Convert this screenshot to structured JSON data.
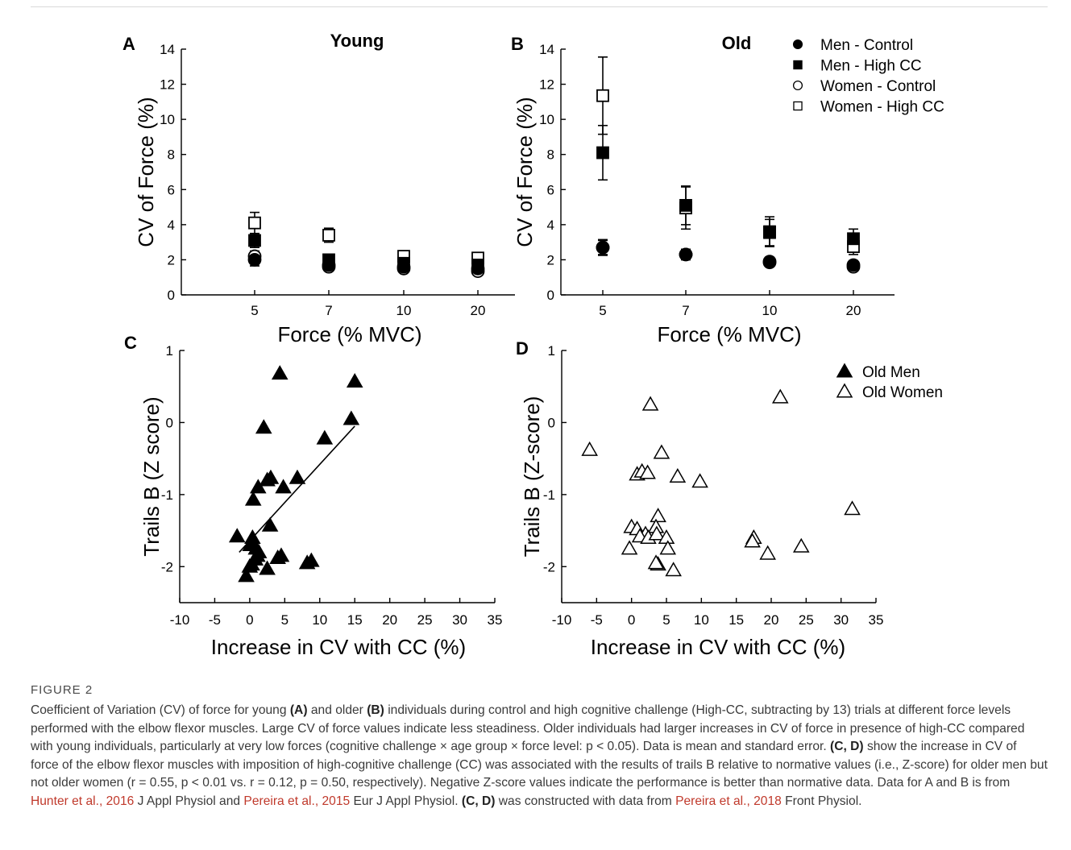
{
  "figure_label": "FIGURE 2",
  "caption": {
    "t1": "Coefficient of Variation (CV) of force for young ",
    "b1": "(A)",
    "t2": " and older ",
    "b2": "(B)",
    "t3": " individuals during control and high cognitive challenge (High-CC, subtracting by 13) trials at different force levels performed with the elbow flexor muscles. Large CV of force values indicate less steadiness. Older individuals had larger increases in CV of force in presence of high-CC compared with young individuals, particularly at very low forces (cognitive challenge × age group × force level: p < 0.05). Data is mean and standard error. ",
    "b3": "(C, D)",
    "t4": " show the increase in CV of force of the elbow flexor muscles with imposition of high-cognitive challenge (CC) was associated with the results of trails B relative to normative values (i.e., Z-score) for older men but not older women (r = 0.55, p < 0.01 vs. r = 0.12, p = 0.50, respectively). Negative Z-score values indicate the performance is better than normative data. Data for A and B is from ",
    "ref1": "Hunter et al., 2016",
    "t5": " J Appl Physiol and ",
    "ref2": "Pereira et al., 2015",
    "t6": " Eur J Appl Physiol. ",
    "b4": "(C, D)",
    "t7": " was constructed with data from ",
    "ref3": "Pereira et al., 2018",
    "t8": " Front Physiol."
  },
  "chart_data": [
    {
      "panel": "A",
      "type": "scatter",
      "title": "Young",
      "xlabel": "Force (% MVC)",
      "ylabel": "CV of Force (%)",
      "categories": [
        "5",
        "7",
        "10",
        "20"
      ],
      "ylim": [
        0,
        14
      ],
      "yticks": [
        0,
        2,
        4,
        6,
        8,
        10,
        12,
        14
      ],
      "legend": "none",
      "series": [
        {
          "key": "men_control",
          "marker": "circle-filled",
          "values": [
            2.0,
            1.7,
            1.6,
            1.5
          ],
          "err": [
            0.35,
            0.2,
            0.15,
            0.15
          ]
        },
        {
          "key": "men_highcc",
          "marker": "square-filled",
          "values": [
            3.1,
            2.0,
            1.8,
            1.7
          ],
          "err": [
            0.4,
            0.25,
            0.2,
            0.2
          ]
        },
        {
          "key": "women_control",
          "marker": "circle-open",
          "values": [
            2.2,
            1.6,
            1.5,
            1.35
          ],
          "err": [
            0.3,
            0.2,
            0.15,
            0.15
          ]
        },
        {
          "key": "women_highcc",
          "marker": "square-open",
          "values": [
            4.1,
            3.4,
            2.2,
            2.1
          ],
          "err": [
            0.6,
            0.4,
            0.25,
            0.25
          ]
        }
      ]
    },
    {
      "panel": "B",
      "type": "scatter",
      "title": "Old",
      "xlabel": "Force (% MVC)",
      "ylabel": "CV of Force (%)",
      "categories": [
        "5",
        "7",
        "10",
        "20"
      ],
      "ylim": [
        0,
        14
      ],
      "yticks": [
        0,
        2,
        4,
        6,
        8,
        10,
        12,
        14
      ],
      "legend": "top-right",
      "series": [
        {
          "key": "men_control",
          "name": "Men - Control",
          "marker": "circle-filled",
          "values": [
            2.7,
            2.3,
            1.9,
            1.7
          ],
          "err": [
            0.4,
            0.3,
            0.25,
            0.25
          ]
        },
        {
          "key": "men_highcc",
          "name": "Men - High CC",
          "marker": "square-filled",
          "values": [
            8.1,
            5.1,
            3.6,
            3.2
          ],
          "err": [
            1.55,
            1.1,
            0.85,
            0.55
          ]
        },
        {
          "key": "women_control",
          "name": "Women - Control",
          "marker": "circle-open",
          "values": [
            2.7,
            2.3,
            1.85,
            1.6
          ],
          "err": [
            0.45,
            0.3,
            0.25,
            0.2
          ]
        },
        {
          "key": "women_highcc",
          "name": "Women - High CC",
          "marker": "square-open",
          "values": [
            11.35,
            4.95,
            3.55,
            2.75
          ],
          "err": [
            2.2,
            1.2,
            0.75,
            0.45
          ]
        }
      ]
    },
    {
      "panel": "C",
      "type": "scatter",
      "title": "",
      "xlabel": "Increase in CV with CC (%)",
      "ylabel": "Trails B (Z score)",
      "xlim": [
        -10,
        35
      ],
      "xticks": [
        -10,
        -5,
        0,
        5,
        10,
        15,
        20,
        25,
        30,
        35
      ],
      "ylim": [
        -2.5,
        1
      ],
      "yticks": [
        -2,
        -1,
        0,
        1
      ],
      "legend": "none",
      "trendline": {
        "x": [
          -1.5,
          15.0
        ],
        "y": [
          -1.8,
          -0.05
        ]
      },
      "series": [
        {
          "key": "old_men",
          "marker": "triangle-filled",
          "x": [
            4.3,
            15.0,
            -1.8,
            2.0,
            0.5,
            1.2,
            2.5,
            3.0,
            4.8,
            6.8,
            10.7,
            14.5,
            0.1,
            0.4,
            0.9,
            1.3,
            2.9,
            0.3,
            0.8,
            0.0,
            1.1,
            2.5,
            4.0,
            4.5,
            8.2,
            8.8,
            -0.5
          ],
          "y": [
            0.68,
            0.57,
            -1.58,
            -0.07,
            -1.07,
            -0.9,
            -0.8,
            -0.77,
            -0.9,
            -0.77,
            -0.22,
            0.05,
            -1.7,
            -1.6,
            -1.75,
            -1.8,
            -1.43,
            -1.97,
            -1.9,
            -2.0,
            -1.85,
            -2.03,
            -1.88,
            -1.85,
            -1.95,
            -1.92,
            -2.13
          ]
        }
      ]
    },
    {
      "panel": "D",
      "type": "scatter",
      "title": "",
      "xlabel": "Increase in CV with CC (%)",
      "ylabel": "Trails B (Z-score)",
      "xlim": [
        -10,
        35
      ],
      "xticks": [
        -10,
        -5,
        0,
        5,
        10,
        15,
        20,
        25,
        30,
        35
      ],
      "ylim": [
        -2.5,
        1
      ],
      "yticks": [
        -2,
        -1,
        0,
        1
      ],
      "legend": "top-right",
      "legend_entries": [
        {
          "marker": "triangle-filled",
          "name": "Old Men"
        },
        {
          "marker": "triangle-open",
          "name": " Old Women"
        }
      ],
      "series": [
        {
          "key": "old_women",
          "marker": "triangle-open",
          "x": [
            -6.0,
            2.7,
            21.3,
            4.3,
            0.8,
            1.5,
            2.3,
            6.6,
            9.8,
            31.6,
            3.8,
            3.5,
            0.0,
            0.8,
            2.0,
            1.2,
            2.4,
            3.6,
            5.0,
            17.5,
            17.3,
            24.3,
            5.2,
            19.5,
            3.8,
            3.5,
            -0.3,
            6.0
          ],
          "y": [
            -0.38,
            0.25,
            0.35,
            -0.42,
            -0.72,
            -0.68,
            -0.7,
            -0.75,
            -0.82,
            -1.2,
            -1.3,
            -1.45,
            -1.45,
            -1.48,
            -1.55,
            -1.58,
            -1.6,
            -1.55,
            -1.6,
            -1.6,
            -1.65,
            -1.72,
            -1.75,
            -1.82,
            -1.97,
            -1.95,
            -1.75,
            -2.05
          ]
        }
      ]
    }
  ]
}
